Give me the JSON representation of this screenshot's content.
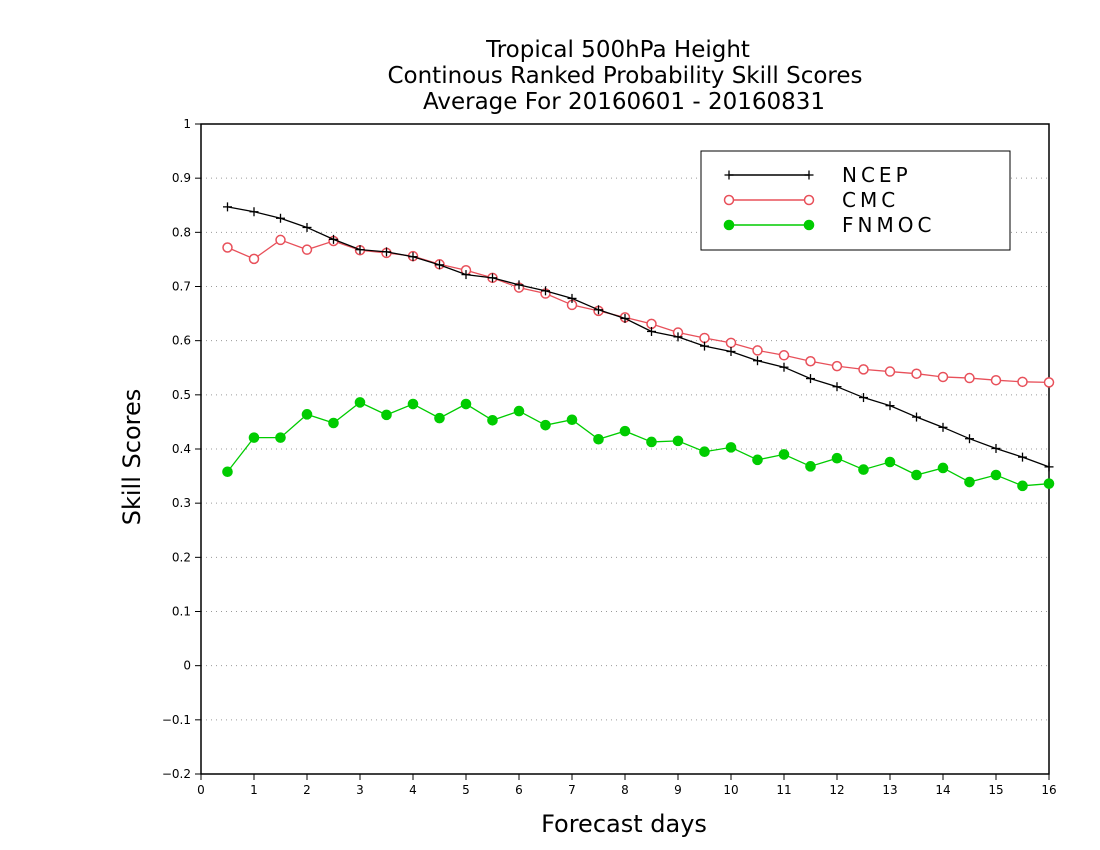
{
  "chart_data": {
    "type": "line",
    "title_lines": [
      "Tropical 500hPa Height",
      "Continous Ranked Probability Skill Scores",
      "Average For 20160601 - 20160831"
    ],
    "xlabel": "Forecast days",
    "ylabel": "Skill Scores",
    "xlim": [
      0,
      16
    ],
    "ylim": [
      -0.2,
      1
    ],
    "x_ticks": [
      0,
      1,
      2,
      3,
      4,
      5,
      6,
      7,
      8,
      9,
      10,
      11,
      12,
      13,
      14,
      15,
      16
    ],
    "y_ticks": [
      -0.2,
      -0.1,
      0,
      0.1,
      0.2,
      0.3,
      0.4,
      0.5,
      0.6,
      0.7,
      0.8,
      0.9,
      1
    ],
    "y_tick_labels": [
      "−0.2",
      "−0.1",
      "0",
      "0.1",
      "0.2",
      "0.3",
      "0.4",
      "0.5",
      "0.6",
      "0.7",
      "0.8",
      "0.9",
      "1"
    ],
    "grid": "horizontal dotted",
    "legend_position": "top-right",
    "x": [
      0.5,
      1,
      1.5,
      2,
      2.5,
      3,
      3.5,
      4,
      4.5,
      5,
      5.5,
      6,
      6.5,
      7,
      7.5,
      8,
      8.5,
      9,
      9.5,
      10,
      10.5,
      11,
      11.5,
      12,
      12.5,
      13,
      13.5,
      14,
      14.5,
      15,
      15.5,
      16
    ],
    "series": [
      {
        "name": "NCEP",
        "color": "#000000",
        "marker": "plus",
        "values": [
          0.847,
          0.838,
          0.826,
          0.809,
          0.787,
          0.768,
          0.764,
          0.755,
          0.74,
          0.722,
          0.716,
          0.703,
          0.692,
          0.678,
          0.657,
          0.641,
          0.617,
          0.607,
          0.59,
          0.58,
          0.563,
          0.551,
          0.53,
          0.515,
          0.495,
          0.48,
          0.459,
          0.44,
          0.419,
          0.401,
          0.385,
          0.367
        ]
      },
      {
        "name": "CMC",
        "color": "#e8505a",
        "marker": "open-circle",
        "values": [
          0.772,
          0.751,
          0.786,
          0.768,
          0.784,
          0.767,
          0.762,
          0.756,
          0.741,
          0.73,
          0.716,
          0.698,
          0.687,
          0.666,
          0.655,
          0.643,
          0.631,
          0.615,
          0.605,
          0.596,
          0.582,
          0.573,
          0.562,
          0.553,
          0.547,
          0.543,
          0.539,
          0.533,
          0.531,
          0.527,
          0.524,
          0.523
        ]
      },
      {
        "name": "FNMOC",
        "color": "#00cc00",
        "marker": "filled-circle",
        "values": [
          0.358,
          0.421,
          0.421,
          0.464,
          0.448,
          0.486,
          0.463,
          0.483,
          0.457,
          0.483,
          0.453,
          0.47,
          0.444,
          0.454,
          0.418,
          0.433,
          0.413,
          0.415,
          0.395,
          0.403,
          0.38,
          0.39,
          0.368,
          0.383,
          0.362,
          0.376,
          0.352,
          0.365,
          0.339,
          0.352,
          0.332,
          0.336
        ]
      }
    ]
  }
}
